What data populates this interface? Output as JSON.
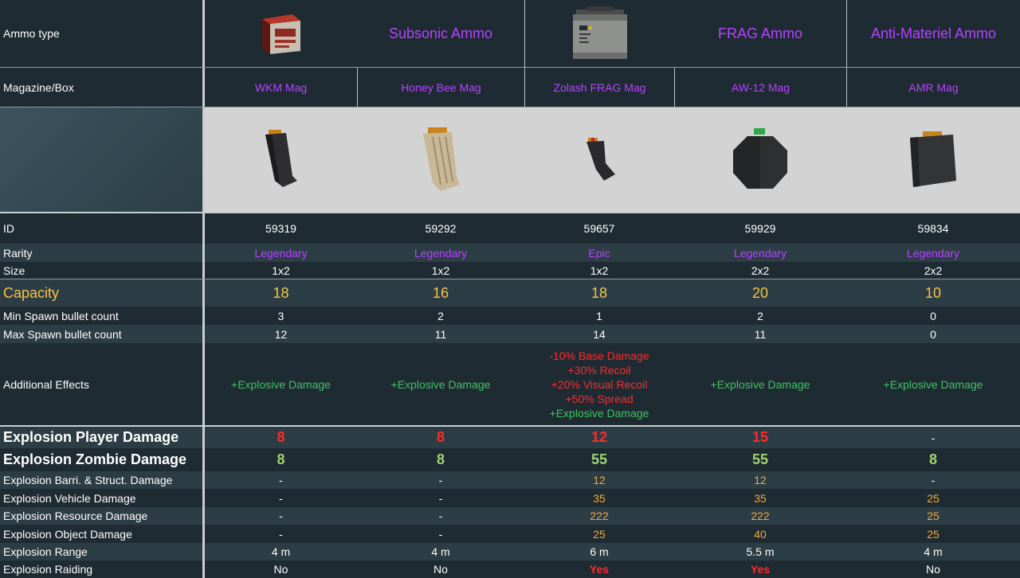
{
  "colors": {
    "legendary": "#b544ff",
    "epic": "#b544ff",
    "positive_effect": "#3fc25f",
    "negative_effect": "#ff2a2a",
    "capacity": "#f6c544",
    "highlight": "#f3a83a"
  },
  "header": {
    "ammo_type_label": "Ammo type",
    "magazine_label": "Magazine/Box",
    "ammo_types": [
      {
        "name": "",
        "icon": "ammo-box-icon"
      },
      {
        "name": "Subsonic Ammo"
      },
      {
        "name": "",
        "icon": "ammo-crate-icon"
      },
      {
        "name": "FRAG Ammo"
      },
      {
        "name": "Anti-Materiel Ammo"
      }
    ],
    "magazines": [
      "WKM Mag",
      "Honey Bee Mag",
      "Zolash FRAG Mag",
      "AW-12 Mag",
      "AMR Mag"
    ],
    "magazine_icons": [
      "wkm-mag-icon",
      "honey-bee-mag-icon",
      "zolash-frag-mag-icon",
      "aw12-drum-mag-icon",
      "amr-mag-icon"
    ]
  },
  "rows": {
    "id": {
      "label": "ID",
      "values": [
        "59319",
        "59292",
        "59657",
        "59929",
        "59834"
      ]
    },
    "rarity": {
      "label": "Rarity",
      "values": [
        "Legendary",
        "Legendary",
        "Epic",
        "Legendary",
        "Legendary"
      ]
    },
    "size": {
      "label": "Size",
      "values": [
        "1x2",
        "1x2",
        "1x2",
        "2x2",
        "2x2"
      ]
    },
    "capacity": {
      "label": "Capacity",
      "values": [
        "18",
        "16",
        "18",
        "20",
        "10"
      ]
    },
    "min_spawn": {
      "label": "Min Spawn bullet count",
      "values": [
        "3",
        "2",
        "1",
        "2",
        "0"
      ]
    },
    "max_spawn": {
      "label": "Max Spawn bullet count",
      "values": [
        "12",
        "11",
        "14",
        "11",
        "0"
      ]
    },
    "effects": {
      "label": "Additional Effects",
      "values": [
        [
          "+Explosive Damage"
        ],
        [
          "+Explosive Damage"
        ],
        [
          "-10% Base Damage",
          "+30% Recoil",
          "+20% Visual Recoil",
          "+50% Spread",
          "+Explosive Damage"
        ],
        [
          "+Explosive Damage"
        ],
        [
          "+Explosive Damage"
        ]
      ]
    },
    "exp_player": {
      "label": "Explosion Player Damage",
      "values": [
        "8",
        "8",
        "12",
        "15",
        "-"
      ]
    },
    "exp_zombie": {
      "label": "Explosion Zombie Damage",
      "values": [
        "8",
        "8",
        "55",
        "55",
        "8"
      ]
    },
    "exp_barri": {
      "label": "Explosion Barri. & Struct. Damage",
      "values": [
        "-",
        "-",
        "12",
        "12",
        "-"
      ]
    },
    "exp_vehicle": {
      "label": "Explosion Vehicle Damage",
      "values": [
        "-",
        "-",
        "35",
        "35",
        "25"
      ]
    },
    "exp_resource": {
      "label": "Explosion Resource Damage",
      "values": [
        "-",
        "-",
        "222",
        "222",
        "25"
      ]
    },
    "exp_object": {
      "label": "Explosion Object Damage",
      "values": [
        "-",
        "-",
        "25",
        "40",
        "25"
      ]
    },
    "exp_range": {
      "label": "Explosion Range",
      "values": [
        "4 m",
        "4 m",
        "6 m",
        "5.5 m",
        "4 m"
      ]
    },
    "exp_raiding": {
      "label": "Explosion Raiding",
      "values": [
        "No",
        "No",
        "Yes",
        "Yes",
        "No"
      ]
    }
  }
}
